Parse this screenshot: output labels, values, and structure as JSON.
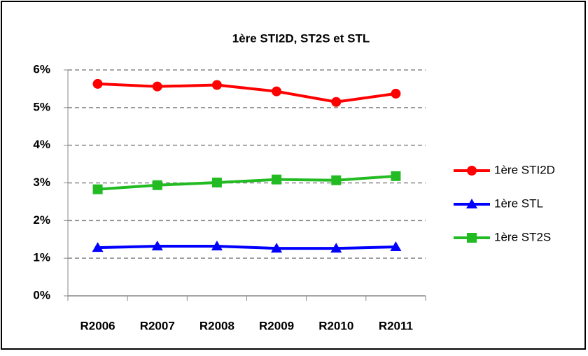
{
  "chart_data": {
    "type": "line",
    "title": "1ère STI2D, ST2S et STL",
    "categories": [
      "R2006",
      "R2007",
      "R2008",
      "R2009",
      "R2010",
      "R2011"
    ],
    "series": [
      {
        "name": "1ère STI2D",
        "color": "#ff0000",
        "marker": "circle",
        "values": [
          5.63,
          5.56,
          5.6,
          5.43,
          5.15,
          5.37
        ]
      },
      {
        "name": "1ère STL",
        "color": "#0000ff",
        "marker": "triangle",
        "values": [
          1.28,
          1.32,
          1.32,
          1.26,
          1.26,
          1.3
        ]
      },
      {
        "name": "1ère ST2S",
        "color": "#22bb22",
        "marker": "square",
        "values": [
          2.83,
          2.94,
          3.01,
          3.09,
          3.07,
          3.18
        ]
      }
    ],
    "ylim": [
      0,
      6
    ],
    "yticks": [
      {
        "value": 0,
        "label": "0%"
      },
      {
        "value": 1,
        "label": "1%"
      },
      {
        "value": 2,
        "label": "2%"
      },
      {
        "value": 3,
        "label": "3%"
      },
      {
        "value": 4,
        "label": "4%"
      },
      {
        "value": 5,
        "label": "5%"
      },
      {
        "value": 6,
        "label": "6%"
      }
    ],
    "grid": true,
    "legend": "right"
  }
}
